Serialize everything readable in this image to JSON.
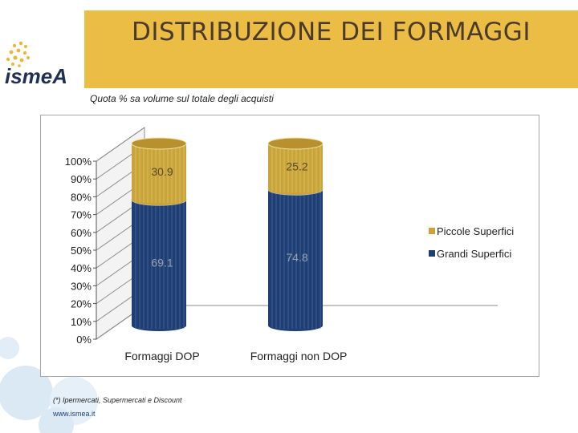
{
  "header": {
    "title": "DISTRIBUZIONE DEI FORMAGGI",
    "logo_text": "ismeA"
  },
  "subtitle": "Quota % sa volume sul totale degli acquisti",
  "footnote": "(*) Ipermercati, Supermercati e Discount",
  "website": "www.ismea.it",
  "colors": {
    "accent_band": "#ebbd45",
    "piccole": "#c9a43a",
    "grandi": "#1f3f74"
  },
  "chart_data": {
    "type": "bar",
    "stacked": true,
    "percent_axis": true,
    "three_d": true,
    "categories": [
      "Formaggi DOP",
      "Formaggi non DOP"
    ],
    "series": [
      {
        "name": "Grandi Superfici",
        "values": [
          69.1,
          74.8
        ],
        "labels": [
          "69.1",
          "74.8"
        ],
        "color": "#1f3f74"
      },
      {
        "name": "Piccole Superfici",
        "values": [
          30.9,
          25.2
        ],
        "labels": [
          "30.9",
          "25.2"
        ],
        "color": "#c9a43a"
      }
    ],
    "legend_order": [
      "Piccole Superfici",
      "Grandi Superfici"
    ],
    "legend_position": "right",
    "y_ticks": [
      "0%",
      "10%",
      "20%",
      "30%",
      "40%",
      "50%",
      "60%",
      "70%",
      "80%",
      "90%",
      "100%"
    ],
    "ylim": [
      0,
      100
    ]
  }
}
